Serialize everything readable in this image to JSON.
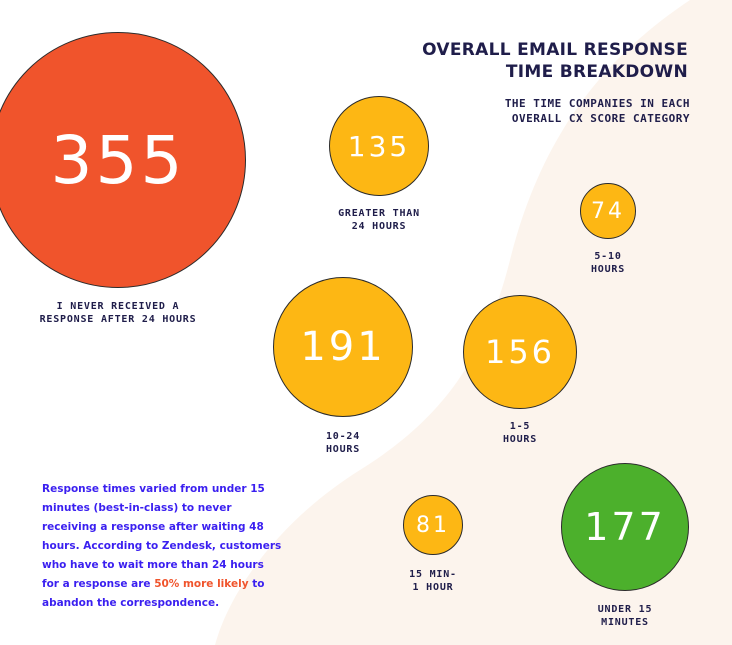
{
  "header": {
    "title_line1": "OVERALL EMAIL RESPONSE",
    "title_line2": "TIME BREAKDOWN",
    "subtitle_line1": "THE TIME COMPANIES IN EACH",
    "subtitle_line2": "OVERALL CX SCORE CATEGORY"
  },
  "chart_data": {
    "type": "bubble",
    "title": "OVERALL EMAIL RESPONSE TIME BREAKDOWN",
    "subtitle": "THE TIME COMPANIES IN EACH OVERALL CX SCORE CATEGORY",
    "bubbles": [
      {
        "value": "355",
        "label_lines": [
          "I NEVER RECEIVED A",
          "RESPONSE AFTER 24 HOURS"
        ],
        "color": "#f0542c"
      },
      {
        "value": "135",
        "label_lines": [
          "GREATER THAN",
          "24 HOURS"
        ],
        "color": "#fdb714"
      },
      {
        "value": "74",
        "label_lines": [
          "5-10",
          "HOURS"
        ],
        "color": "#fdb714"
      },
      {
        "value": "191",
        "label_lines": [
          "10-24",
          "HOURS"
        ],
        "color": "#fdb714"
      },
      {
        "value": "156",
        "label_lines": [
          "1-5",
          "HOURS"
        ],
        "color": "#fdb714"
      },
      {
        "value": "81",
        "label_lines": [
          "15 MIN-",
          "1 HOUR"
        ],
        "color": "#fdb714"
      },
      {
        "value": "177",
        "label_lines": [
          "UNDER 15",
          "MINUTES"
        ],
        "color": "#4cb02c"
      }
    ]
  },
  "note": {
    "part1": "Response times varied from under 15 minutes (best-in-class) to never receiving a response after waiting 48 hours. According to Zendesk, customers who have to wait more than 24 hours for a response are ",
    "highlight": "50% more likely",
    "part2": " to abandon the correspondence."
  },
  "colors": {
    "background_shape": "#fcf4ed",
    "text_dark": "#1f1d4a",
    "note_text": "#3a1ff0",
    "highlight": "#f0542c"
  }
}
